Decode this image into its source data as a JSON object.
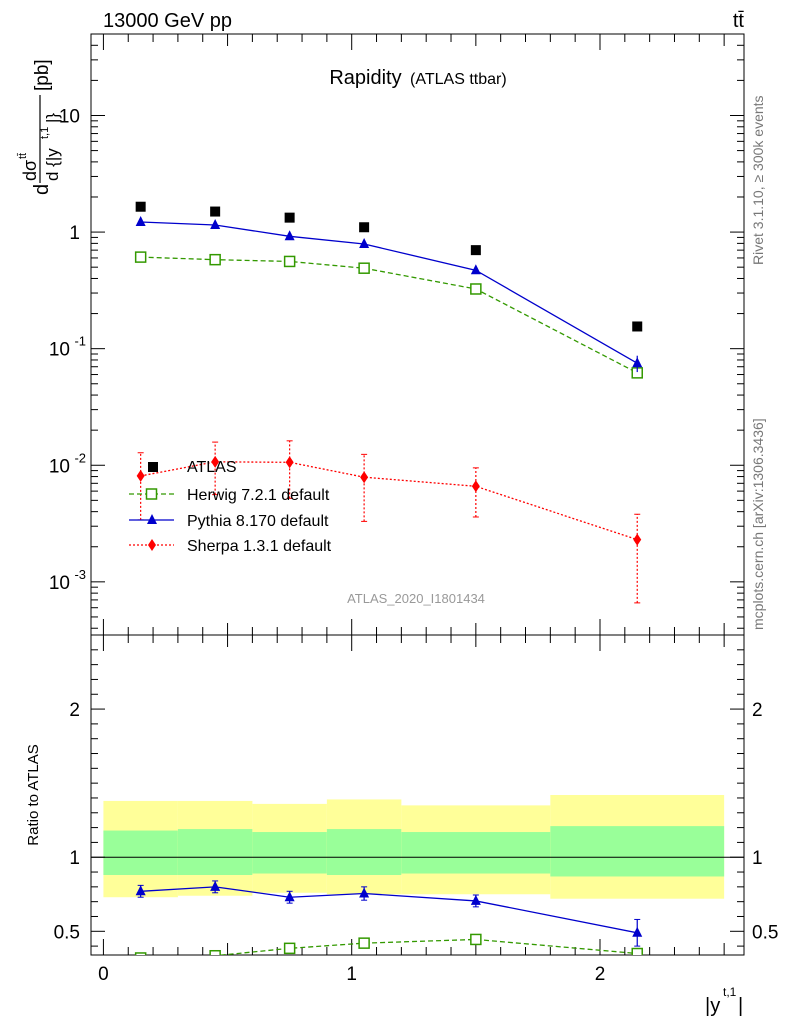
{
  "header": {
    "left": "13000 GeV pp",
    "right": "tt̄"
  },
  "side": {
    "rivet": "Rivet 3.1.10, ≥ 300k events",
    "mcplots": "mcplots.cern.ch [arXiv:1306.3436]"
  },
  "colors": {
    "atlas": "#000000",
    "herwig": "#339900",
    "pythia": "#0000cc",
    "sherpa": "#ff0000",
    "band_inner": "#99ff99",
    "band_outer": "#ffff99"
  },
  "chart_data": [
    {
      "type": "scatter",
      "title": "Rapidity",
      "subtitle": "(ATLAS ttbar)",
      "ylabel": "dσ^{tt̄}/d{|y^{t,1}|} [pb]",
      "analysis_label": "ATLAS_2020_I1801434",
      "yscale": "log",
      "ylim": [
        0.00035,
        50
      ],
      "xlim": [
        -0.05,
        2.58
      ],
      "y_ticks": [
        {
          "label": "10^-3"
        },
        {
          "label": "10^-2"
        },
        {
          "label": "10^-1"
        },
        {
          "label": "1"
        },
        {
          "label": "10"
        }
      ],
      "legend": {
        "position": "lower-left",
        "entries": [
          "ATLAS",
          "Herwig 7.2.1 default",
          "Pythia 8.170 default",
          "Sherpa 1.3.1 default"
        ]
      },
      "series": [
        {
          "name": "ATLAS",
          "marker": "filled-square",
          "x": [
            0.15,
            0.45,
            0.75,
            1.05,
            1.5,
            2.15
          ],
          "y": [
            1.65,
            1.5,
            1.33,
            1.1,
            0.7,
            0.155
          ]
        },
        {
          "name": "Herwig 7.2.1 default",
          "marker": "open-square",
          "line": "dashed",
          "x": [
            0.15,
            0.45,
            0.75,
            1.05,
            1.5,
            2.15
          ],
          "y": [
            0.61,
            0.58,
            0.56,
            0.49,
            0.325,
            0.062
          ]
        },
        {
          "name": "Pythia 8.170 default",
          "marker": "filled-triangle",
          "line": "solid",
          "x": [
            0.15,
            0.45,
            0.75,
            1.05,
            1.5,
            2.15
          ],
          "y": [
            1.22,
            1.15,
            0.92,
            0.79,
            0.47,
            0.075
          ],
          "yerr": [
            0.03,
            0.03,
            0.03,
            0.03,
            0.02,
            0.012
          ]
        },
        {
          "name": "Sherpa 1.3.1 default",
          "marker": "filled-diamond",
          "line": "dotted",
          "x": [
            0.15,
            0.45,
            0.75,
            1.05,
            1.5,
            2.15
          ],
          "y": [
            0.0081,
            0.0107,
            0.0106,
            0.0079,
            0.0066,
            0.0023
          ],
          "ylow": [
            0.0034,
            0.0056,
            0.0052,
            0.0033,
            0.0036,
            0.00066
          ],
          "yhigh": [
            0.0128,
            0.0158,
            0.0162,
            0.0124,
            0.0095,
            0.0038
          ]
        }
      ]
    },
    {
      "type": "line",
      "ylabel": "Ratio to ATLAS",
      "xlabel": "|y^{t,1}|",
      "ylim": [
        0.34,
        2.5
      ],
      "xlim": [
        -0.05,
        2.58
      ],
      "x_ticks": [
        "0",
        "1",
        "2"
      ],
      "y_ticks": [
        "0.5",
        "1",
        "2"
      ],
      "bands": {
        "edges": [
          0,
          0.3,
          0.6,
          0.9,
          1.2,
          1.8,
          2.5
        ],
        "inner": [
          [
            0.88,
            1.18
          ],
          [
            0.88,
            1.19
          ],
          [
            0.89,
            1.17
          ],
          [
            0.88,
            1.19
          ],
          [
            0.89,
            1.17
          ],
          [
            0.87,
            1.21
          ]
        ],
        "outer": [
          [
            0.73,
            1.38
          ],
          [
            0.74,
            1.38
          ],
          [
            0.76,
            1.36
          ],
          [
            0.75,
            1.39
          ],
          [
            0.75,
            1.35
          ],
          [
            0.72,
            1.42
          ]
        ]
      },
      "series": [
        {
          "name": "Herwig 7.2.1 default",
          "x": [
            0.15,
            0.45,
            0.75,
            1.05,
            1.5,
            2.15
          ],
          "y": [
            0.32,
            0.335,
            0.385,
            0.42,
            0.445,
            0.35
          ]
        },
        {
          "name": "Pythia 8.170 default",
          "x": [
            0.15,
            0.45,
            0.75,
            1.05,
            1.5,
            2.15
          ],
          "y": [
            0.77,
            0.8,
            0.73,
            0.755,
            0.705,
            0.49
          ],
          "yerr": [
            0.04,
            0.04,
            0.04,
            0.045,
            0.04,
            0.09
          ]
        }
      ]
    }
  ]
}
